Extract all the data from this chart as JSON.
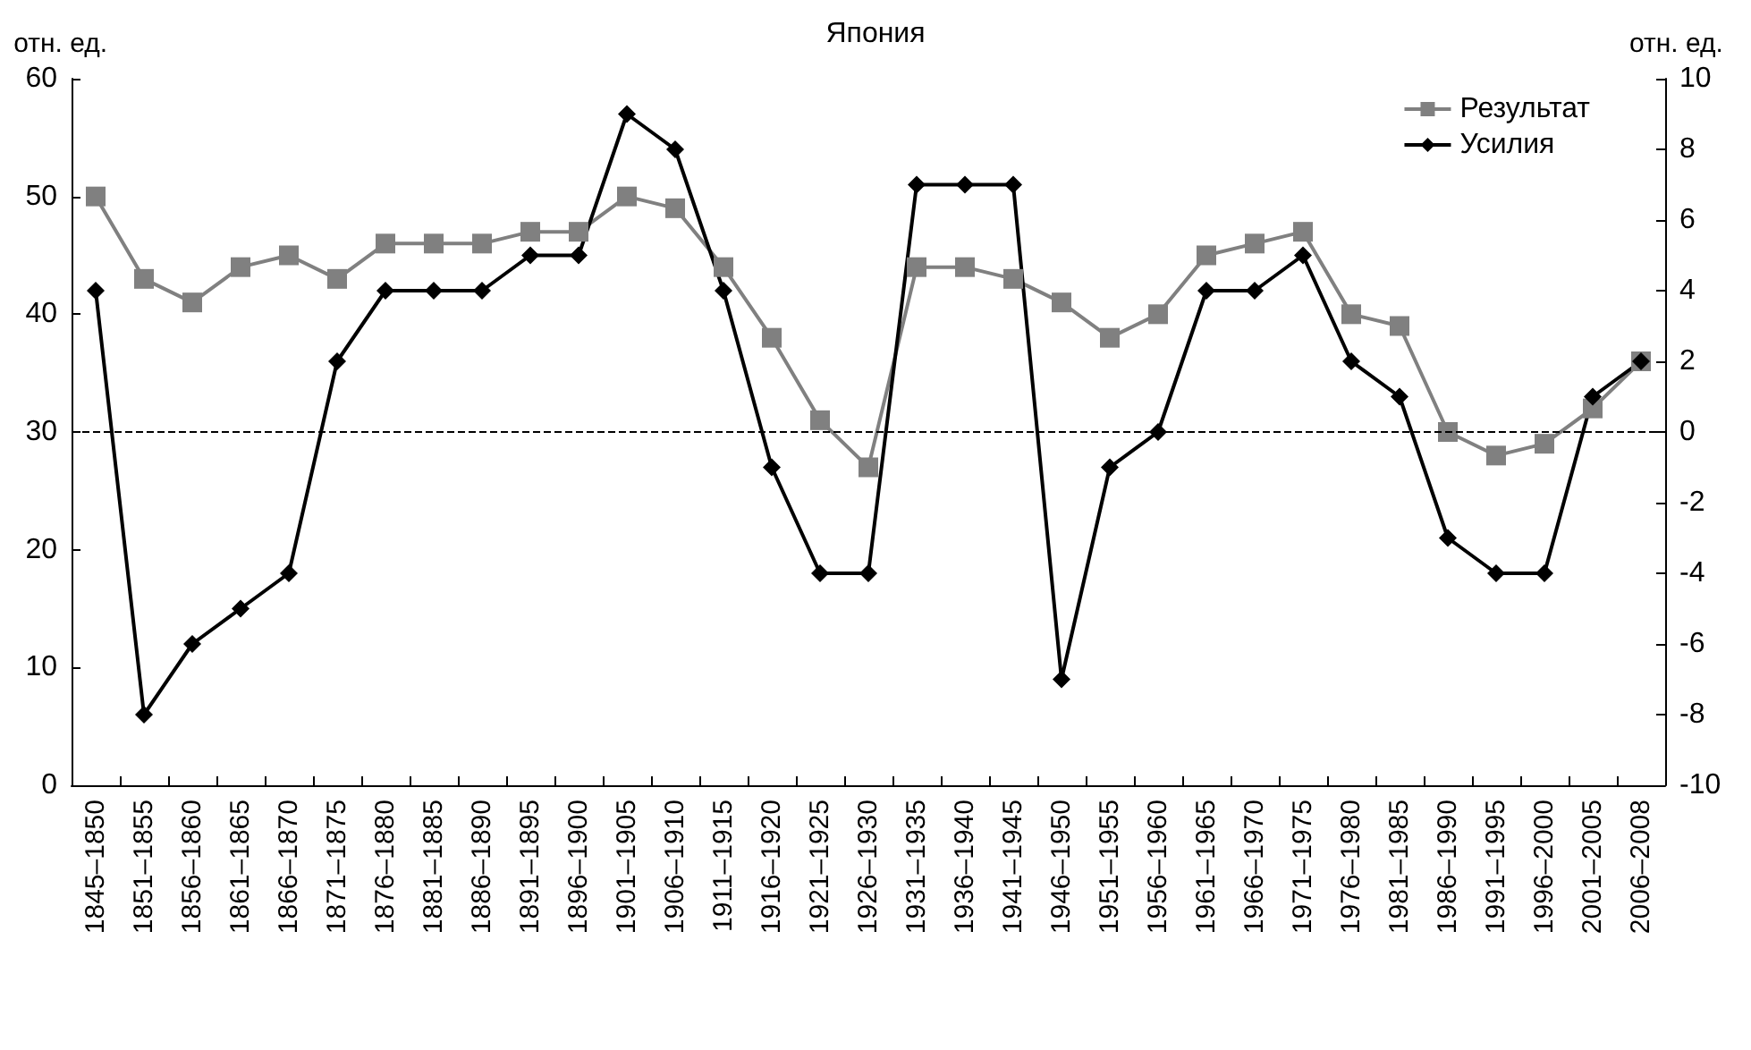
{
  "chart_data": {
    "type": "line",
    "title": "Япония",
    "ylabel": "отн. ед.",
    "y2label": "отн. ед.",
    "categories": [
      "1845–1850",
      "1851–1855",
      "1856–1860",
      "1861–1865",
      "1866–1870",
      "1871–1875",
      "1876–1880",
      "1881–1885",
      "1886–1890",
      "1891–1895",
      "1896–1900",
      "1901–1905",
      "1906–1910",
      "1911–1915",
      "1916–1920",
      "1921–1925",
      "1926–1930",
      "1931–1935",
      "1936–1940",
      "1941–1945",
      "1946–1950",
      "1951–1955",
      "1956–1960",
      "1961–1965",
      "1966–1970",
      "1971–1975",
      "1976–1980",
      "1981–1985",
      "1986–1990",
      "1991–1995",
      "1996–2000",
      "2001–2005",
      "2006–2008"
    ],
    "series": [
      {
        "name": "Результат",
        "color": "#808080",
        "marker": "square",
        "values": [
          50,
          43,
          41,
          44,
          45,
          43,
          46,
          46,
          46,
          47,
          47,
          50,
          49,
          44,
          38,
          31,
          27,
          44,
          44,
          43,
          41,
          38,
          40,
          45,
          46,
          47,
          40,
          39,
          30,
          28,
          29,
          32,
          36
        ]
      },
      {
        "name": "Усилия",
        "color": "#000000",
        "marker": "diamond",
        "axis": "y2",
        "values": [
          4,
          -8,
          -6,
          -5,
          -4,
          2,
          4,
          4,
          4,
          5,
          5,
          9,
          8,
          4,
          -1,
          -4,
          -4,
          7,
          7,
          7,
          -7,
          -1,
          0,
          4,
          4,
          5,
          2,
          1,
          -3,
          -4,
          -4,
          1,
          2
        ]
      }
    ],
    "ylim": [
      0,
      60
    ],
    "yticks": [
      0,
      10,
      20,
      30,
      40,
      50,
      60
    ],
    "y2lim": [
      -10,
      10
    ],
    "y2ticks": [
      -10,
      -8,
      -6,
      -4,
      -2,
      0,
      2,
      4,
      6,
      8,
      10
    ],
    "ref_lines": [
      {
        "axis": "y2",
        "value": 0,
        "color": "#000000",
        "line_style": "dashed"
      }
    ],
    "legend": "top right",
    "grid": false,
    "line_style": "solid"
  }
}
